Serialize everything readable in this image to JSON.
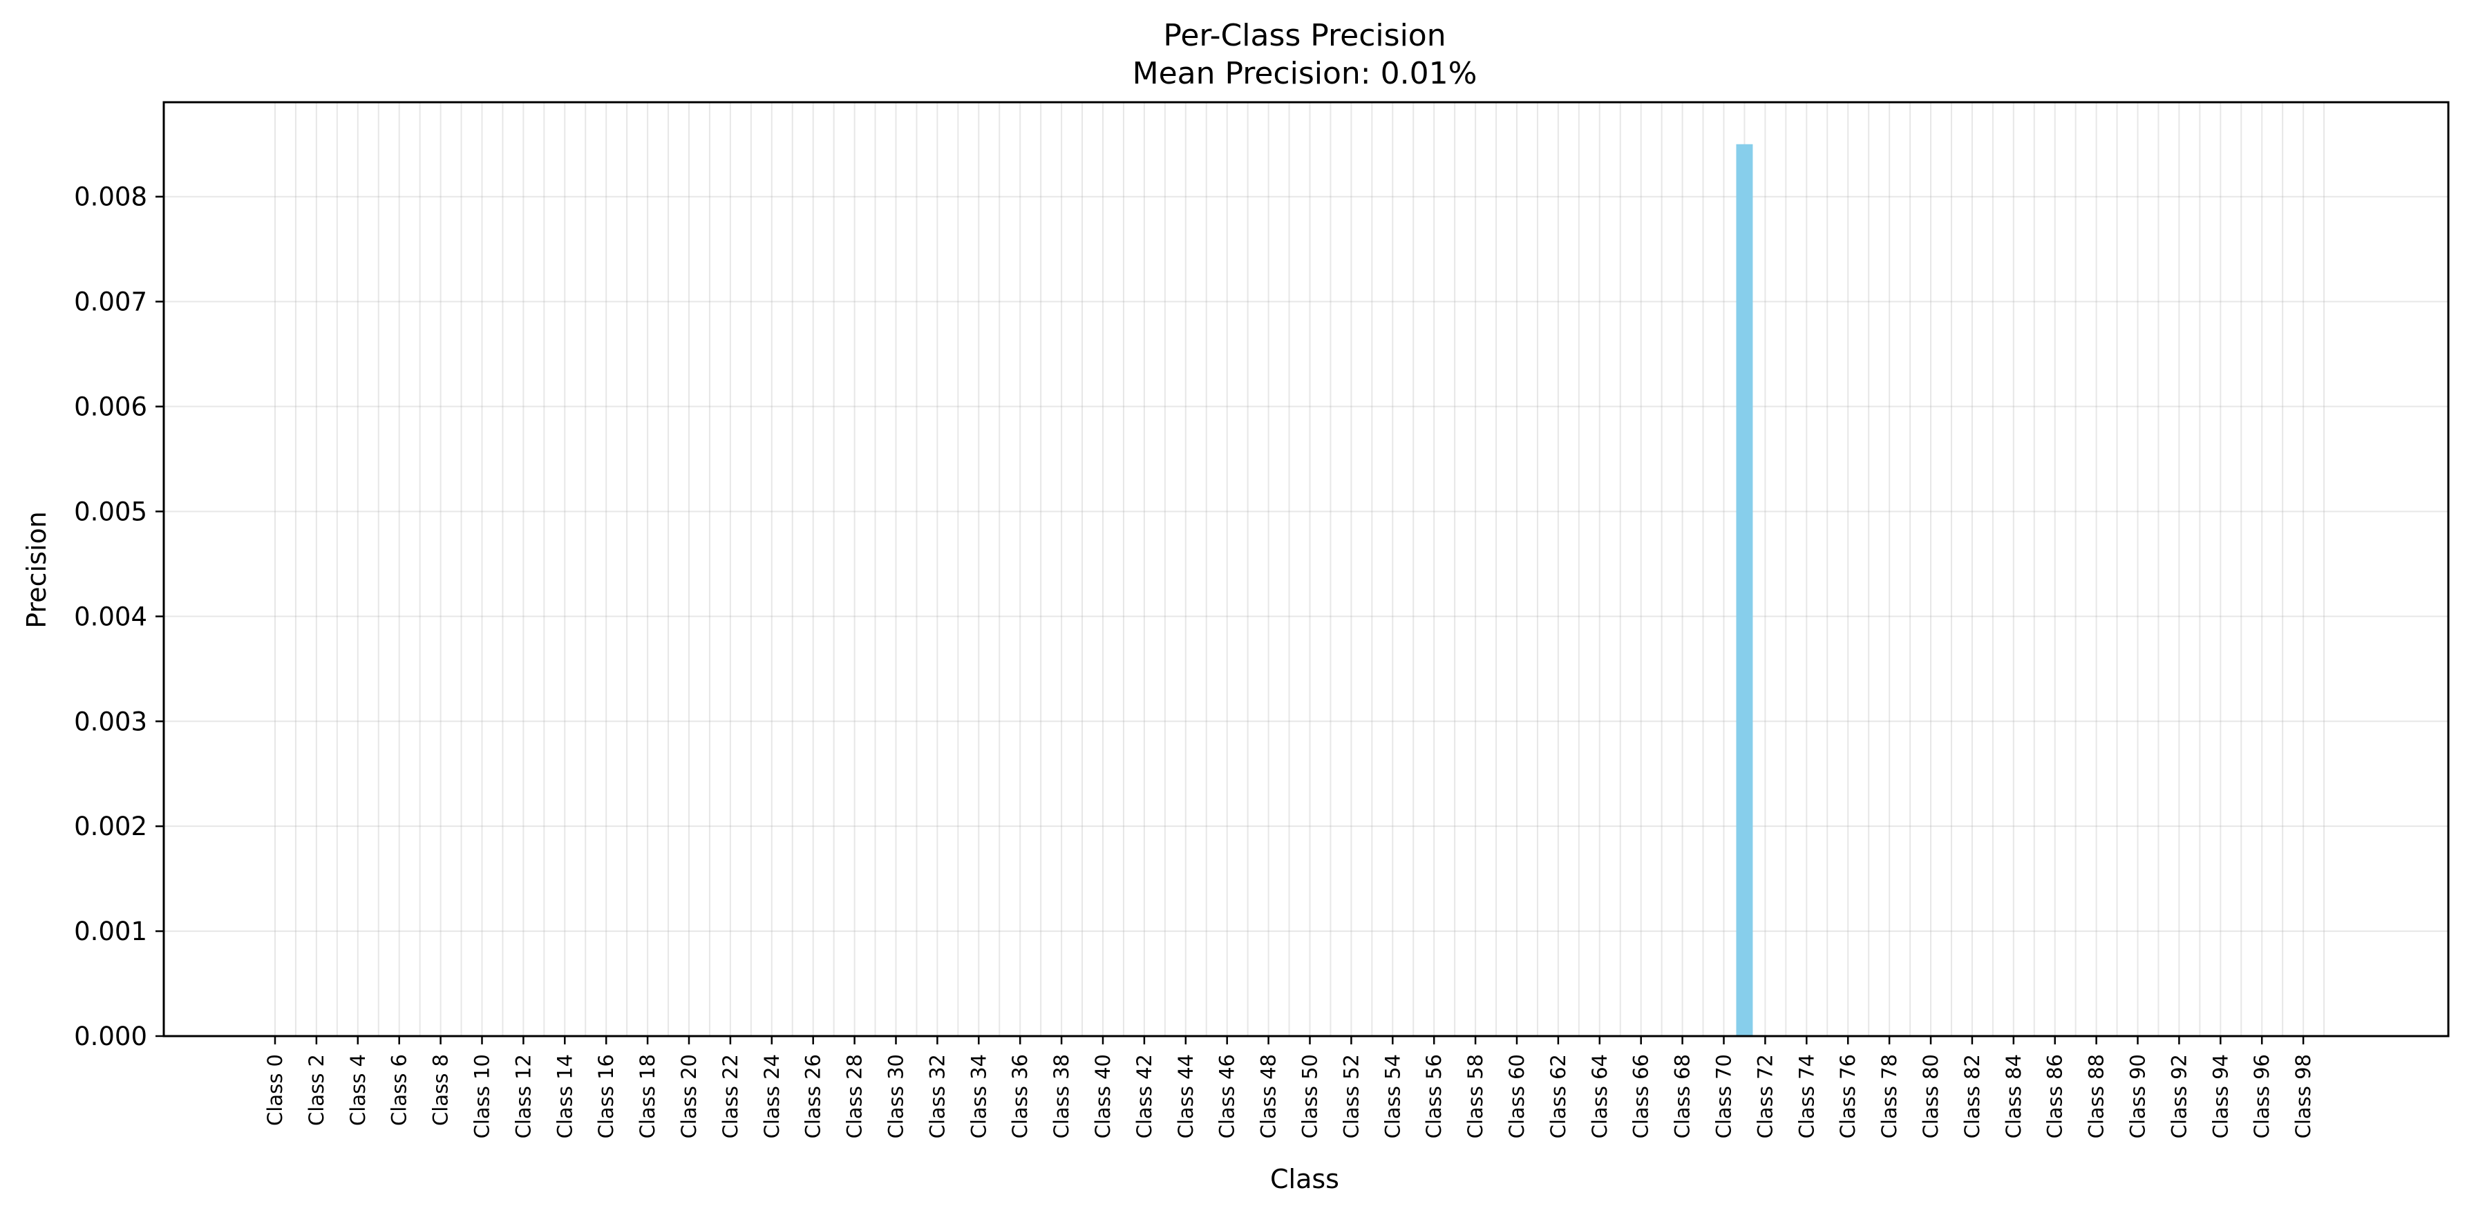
{
  "chart_data": {
    "type": "bar",
    "title": "Per-Class Precision",
    "subtitle": "Mean Precision: 0.01%",
    "xlabel": "Class",
    "ylabel": "Precision",
    "ylim": [
      0,
      0.0089
    ],
    "yticks": [
      "0.000",
      "0.001",
      "0.002",
      "0.003",
      "0.004",
      "0.005",
      "0.006",
      "0.007",
      "0.008"
    ],
    "grid": true,
    "bar_color": "#87CEEB",
    "categories_count": 100,
    "category_prefix": "Class ",
    "tick_labels": [
      "Class 0",
      "Class 2",
      "Class 4",
      "Class 6",
      "Class 8",
      "Class 10",
      "Class 12",
      "Class 14",
      "Class 16",
      "Class 18",
      "Class 20",
      "Class 22",
      "Class 24",
      "Class 26",
      "Class 28",
      "Class 30",
      "Class 32",
      "Class 34",
      "Class 36",
      "Class 38",
      "Class 40",
      "Class 42",
      "Class 44",
      "Class 46",
      "Class 48",
      "Class 50",
      "Class 52",
      "Class 54",
      "Class 56",
      "Class 58",
      "Class 60",
      "Class 62",
      "Class 64",
      "Class 66",
      "Class 68",
      "Class 70",
      "Class 72",
      "Class 74",
      "Class 76",
      "Class 78",
      "Class 80",
      "Class 82",
      "Class 84",
      "Class 86",
      "Class 88",
      "Class 90",
      "Class 92",
      "Class 94",
      "Class 96",
      "Class 98"
    ],
    "values": [
      0,
      0,
      0,
      0,
      0,
      0,
      0,
      0,
      0,
      0,
      0,
      0,
      0,
      0,
      0,
      0,
      0,
      0,
      0,
      0,
      0,
      0,
      0,
      0,
      0,
      0,
      0,
      0,
      0,
      0,
      0,
      0,
      0,
      0,
      0,
      0,
      0,
      0,
      0,
      0,
      0,
      0,
      0,
      0,
      0,
      0,
      0,
      0,
      0,
      0,
      0,
      0,
      0,
      0,
      0,
      0,
      0,
      0,
      0,
      0,
      0,
      0,
      0,
      0,
      0,
      0,
      0,
      0,
      0,
      0,
      0,
      0.0085,
      0,
      0,
      0,
      0,
      0,
      0,
      0,
      0,
      0,
      0,
      0,
      0,
      0,
      0,
      0,
      0,
      0,
      0,
      0,
      0,
      0,
      0,
      0,
      0,
      0,
      0,
      0,
      0
    ]
  }
}
